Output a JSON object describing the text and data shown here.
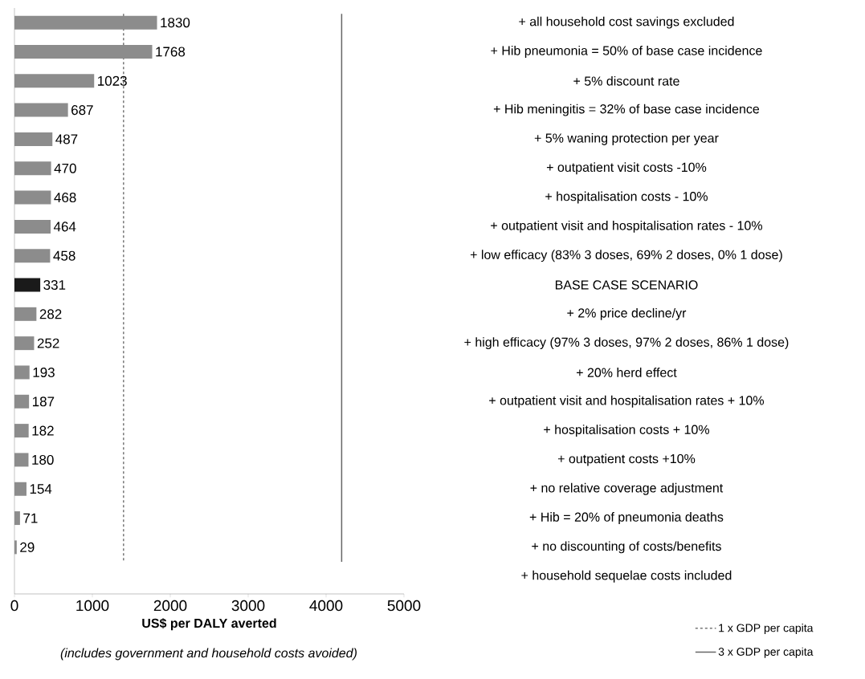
{
  "chart_data": {
    "type": "bar",
    "orientation": "horizontal",
    "xlabel": "US$ per DALY averted",
    "annotations": [
      "(includes government and household costs avoided)"
    ],
    "categories": [
      "+ all household cost savings excluded",
      "+ Hib pneumonia = 50% of base case incidence",
      "+ 5% discount rate",
      "+ Hib meningitis = 32% of base case incidence",
      "+ 5% waning protection per year",
      "+ outpatient visit costs -10%",
      "+ hospitalisation costs - 10%",
      "+ outpatient visit and hospitalisation rates - 10%",
      "+ low efficacy (83% 3 doses, 69% 2 doses, 0% 1 dose)",
      "BASE CASE SCENARIO",
      "+ 2% price decline/yr",
      "+ high efficacy (97% 3 doses, 97% 2 doses, 86% 1 dose)",
      "+ 20% herd effect",
      "+ outpatient visit and hospitalisation rates + 10%",
      "+ hospitalisation costs + 10%",
      "+ outpatient costs +10%",
      "+ no relative coverage adjustment",
      "+ Hib = 20% of pneumonia deaths",
      "+ no discounting of costs/benefits",
      "+ household sequelae costs included"
    ],
    "values": [
      1830,
      1768,
      1023,
      687,
      487,
      470,
      468,
      464,
      458,
      331,
      282,
      252,
      193,
      187,
      182,
      180,
      154,
      71,
      29,
      null
    ],
    "colors": [
      "#8c8c8c",
      "#8c8c8c",
      "#8c8c8c",
      "#8c8c8c",
      "#8c8c8c",
      "#8c8c8c",
      "#8c8c8c",
      "#8c8c8c",
      "#8c8c8c",
      "#1a1a1a",
      "#8c8c8c",
      "#8c8c8c",
      "#8c8c8c",
      "#8c8c8c",
      "#8c8c8c",
      "#8c8c8c",
      "#8c8c8c",
      "#8c8c8c",
      "#8c8c8c",
      "#8c8c8c"
    ],
    "data_labels": true,
    "xlim": [
      0,
      5000
    ],
    "xticks": [
      0,
      1000,
      2000,
      3000,
      4000,
      5000
    ],
    "ref_lines": [
      {
        "axis": "x",
        "value": 1400,
        "label": "1 x GDP per capita",
        "line_style": "dashed",
        "color": "#777777"
      },
      {
        "axis": "x",
        "value": 4200,
        "label": "3 x GDP per capita",
        "line_style": "solid",
        "color": "#666666"
      }
    ],
    "legend": "bottom right",
    "grid": false
  }
}
